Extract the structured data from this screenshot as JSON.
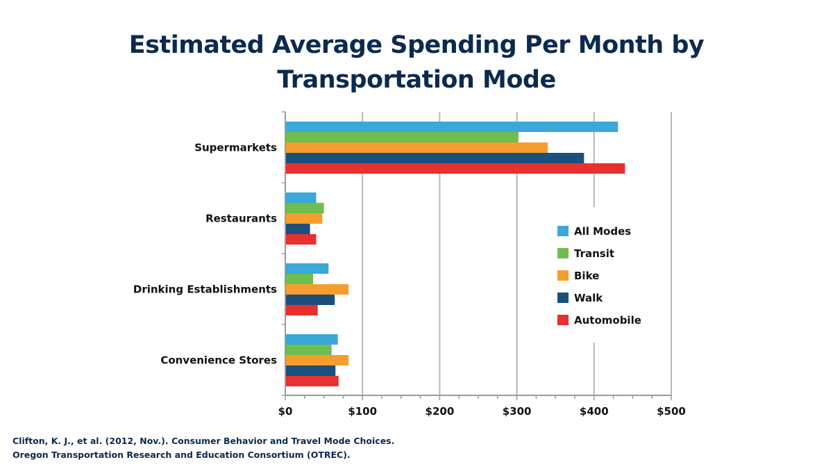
{
  "colors": {
    "title": "#0b2a4e",
    "gridline": "#b5b5b5",
    "axis": "#9a9a9a"
  },
  "source": {
    "line1": "Clifton, K. J., et al. (2012, Nov.). Consumer Behavior and Travel Mode Choices.",
    "line2": "Oregon Transportation Research and Education Consortium (OTREC)."
  },
  "chart_data": {
    "type": "bar",
    "orientation": "horizontal",
    "title": "Estimated Average Spending Per Month by Transportation Mode",
    "title_lines": [
      "Estimated Average Spending Per Month by",
      "Transportation Mode"
    ],
    "xlabel": "",
    "ylabel": "",
    "categories": [
      "Supermarkets",
      "Restaurants",
      "Drinking Establishments",
      "Convenience Stores"
    ],
    "series": [
      {
        "name": "All Modes",
        "color": "#3aa8d8",
        "values": [
          431,
          40,
          56,
          68
        ]
      },
      {
        "name": "Transit",
        "color": "#6dbe4f",
        "values": [
          302,
          50,
          36,
          60
        ]
      },
      {
        "name": "Bike",
        "color": "#f59e2e",
        "values": [
          340,
          48,
          82,
          82
        ]
      },
      {
        "name": "Walk",
        "color": "#1b4f7c",
        "values": [
          387,
          32,
          64,
          65
        ]
      },
      {
        "name": "Automobile",
        "color": "#e8302e",
        "values": [
          440,
          40,
          42,
          69
        ]
      }
    ],
    "xlim": [
      0,
      500
    ],
    "x_ticks": [
      0,
      100,
      200,
      300,
      400,
      500
    ],
    "x_tick_labels": [
      "$0",
      "$100",
      "$200",
      "$300",
      "$400",
      "$500"
    ],
    "x_minor_step": 25,
    "grid": "vertical major gridlines",
    "legend_position": "right-center"
  }
}
